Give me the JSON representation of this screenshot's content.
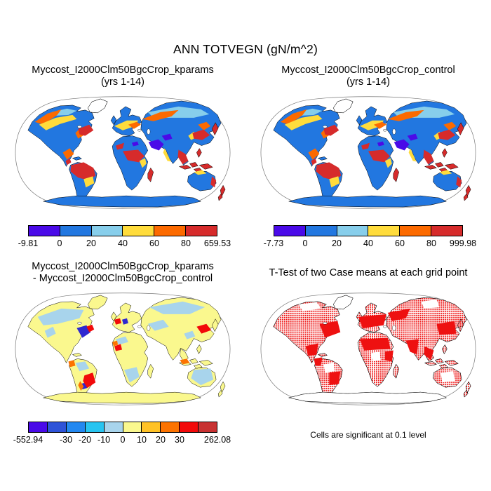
{
  "title": "ANN TOTVEGN (gN/m^2)",
  "panels": {
    "kparams": {
      "title_line1": "Myccost_I2000Clm50BgcCrop_kparams",
      "title_line2": "(yrs 1-14)"
    },
    "control": {
      "title_line1": "Myccost_I2000Clm50BgcCrop_control",
      "title_line2": "(yrs 1-14)"
    },
    "diff": {
      "title_line1": "Myccost_I2000Clm50BgcCrop_kparams",
      "title_line2": "- Myccost_I2000Clm50BgcCrop_control"
    },
    "ttest": {
      "title": "T-Test of two Case means at each grid point",
      "caption": "Cells are significant at 0.1 level"
    }
  },
  "colorbars": {
    "kparams": {
      "colors": [
        "#4a0ae8",
        "#2277e0",
        "#87ceeb",
        "#ffdc3c",
        "#fc6a00",
        "#d62b2b"
      ],
      "labels": [
        "-9.81",
        "0",
        "20",
        "40",
        "60",
        "80",
        "659.53"
      ],
      "positions": [
        0,
        16.667,
        33.333,
        50,
        66.667,
        83.333,
        100
      ]
    },
    "control": {
      "colors": [
        "#4a0ae8",
        "#2277e0",
        "#87ceeb",
        "#ffdc3c",
        "#fc6a00",
        "#d62b2b"
      ],
      "labels": [
        "-7.73",
        "0",
        "20",
        "40",
        "60",
        "80",
        "999.98"
      ],
      "positions": [
        0,
        16.667,
        33.333,
        50,
        66.667,
        83.333,
        100
      ]
    },
    "diff": {
      "colors": [
        "#4a0ae8",
        "#2e53d8",
        "#2388f0",
        "#28c4f0",
        "#a8d4ec",
        "#faf88e",
        "#ffc226",
        "#fc7300",
        "#f20a0a",
        "#c83232"
      ],
      "labels": [
        "-552.94",
        "-30",
        "-20",
        "-10",
        "0",
        "10",
        "20",
        "30",
        "262.08"
      ],
      "positions": [
        0,
        20,
        30,
        40,
        50,
        60,
        70,
        80,
        100
      ]
    }
  },
  "map_colors": {
    "ocean": "#ffffff",
    "outline_gray": "#777777",
    "coastline": "#000000",
    "land_base_top": "#2277e0",
    "land_base_diff": "#faf88e",
    "significant_red": "#ee1111"
  },
  "chart_data": [
    {
      "type": "heatmap",
      "subtype": "global-map",
      "projection": "robinson",
      "title": "Myccost_I2000Clm50BgcCrop_kparams (yrs 1-14)",
      "variable": "ANN TOTVEGN (gN/m^2)",
      "colorbar_ticks": [
        -9.81,
        0,
        20,
        40,
        60,
        80,
        659.53
      ],
      "min": -9.81,
      "max": 659.53,
      "legend_position": "bottom"
    },
    {
      "type": "heatmap",
      "subtype": "global-map",
      "projection": "robinson",
      "title": "Myccost_I2000Clm50BgcCrop_control (yrs 1-14)",
      "variable": "ANN TOTVEGN (gN/m^2)",
      "colorbar_ticks": [
        -7.73,
        0,
        20,
        40,
        60,
        80,
        999.98
      ],
      "min": -7.73,
      "max": 999.98,
      "legend_position": "bottom"
    },
    {
      "type": "heatmap",
      "subtype": "global-map-difference",
      "projection": "robinson",
      "title": "Myccost_I2000Clm50BgcCrop_kparams - Myccost_I2000Clm50BgcCrop_control",
      "variable": "ANN TOTVEGN (gN/m^2)",
      "colorbar_ticks": [
        -552.94,
        -30,
        -20,
        -10,
        0,
        10,
        20,
        30,
        262.08
      ],
      "min": -552.94,
      "max": 262.08,
      "legend_position": "bottom"
    },
    {
      "type": "heatmap",
      "subtype": "significance-mask",
      "projection": "robinson",
      "title": "T-Test of two Case means at each grid point",
      "annotation": "Cells are significant at 0.1 level",
      "significance_level": 0.1
    }
  ]
}
